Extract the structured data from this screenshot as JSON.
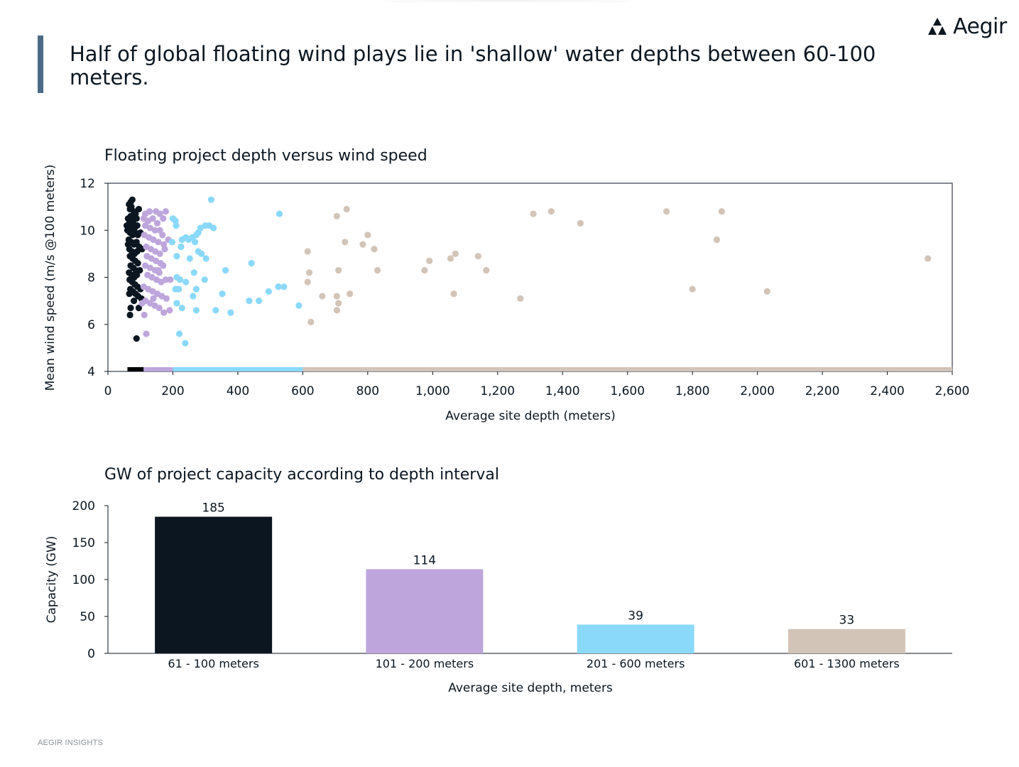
{
  "header": {
    "headline": "Half of global floating wind plays lie in 'shallow' water depths between 60-100 meters.",
    "logo_text": "Aegir"
  },
  "footer": {
    "text": "AEGIR INSIGHTS"
  },
  "colors": {
    "accent_bar": "#4a6a86",
    "d61_100": "#0b1620",
    "d101_200": "#bea6dc",
    "d201_600": "#8ad9fb",
    "d601_1300": "#d3c4b8"
  },
  "chart_data": [
    {
      "type": "scatter",
      "title": "Floating project depth versus wind speed",
      "xlabel": "Average site depth (meters)",
      "ylabel": "Mean wind speed  (m/s @100 meters)",
      "xlim": [
        0,
        2600
      ],
      "ylim": [
        4,
        12
      ],
      "xticks": [
        0,
        200,
        400,
        600,
        800,
        1000,
        1200,
        1400,
        1600,
        1800,
        2000,
        2200,
        2400,
        2600
      ],
      "xtick_labels": [
        "0",
        "200",
        "400",
        "600",
        "800",
        "1,000",
        "1,200",
        "1,400",
        "1,600",
        "1,800",
        "2,000",
        "2,200",
        "2,400",
        "2,600"
      ],
      "yticks": [
        4,
        6,
        8,
        10,
        12
      ],
      "ytick_labels": [
        "4",
        "6",
        "8",
        "10",
        "12"
      ],
      "grid": false,
      "depth_band_bar": [
        {
          "from": 60,
          "to": 110,
          "color": "#000000"
        },
        {
          "from": 110,
          "to": 200,
          "color": "#bea6dc"
        },
        {
          "from": 200,
          "to": 600,
          "color": "#8ad9fb"
        },
        {
          "from": 600,
          "to": 2600,
          "color": "#d3c4b8"
        }
      ],
      "series": [
        {
          "color": "#0b1620",
          "points": [
            [
              65,
              11.1
            ],
            [
              70,
              11.2
            ],
            [
              72,
              11.0
            ],
            [
              75,
              11.3
            ],
            [
              68,
              10.9
            ],
            [
              80,
              10.8
            ],
            [
              85,
              10.7
            ],
            [
              62,
              10.5
            ],
            [
              70,
              10.6
            ],
            [
              78,
              10.4
            ],
            [
              88,
              10.5
            ],
            [
              66,
              10.3
            ],
            [
              74,
              10.2
            ],
            [
              82,
              10.1
            ],
            [
              90,
              10.2
            ],
            [
              60,
              10.0
            ],
            [
              68,
              9.9
            ],
            [
              76,
              9.8
            ],
            [
              84,
              9.9
            ],
            [
              92,
              9.8
            ],
            [
              64,
              9.6
            ],
            [
              72,
              9.5
            ],
            [
              80,
              9.4
            ],
            [
              88,
              9.5
            ],
            [
              96,
              9.3
            ],
            [
              66,
              9.2
            ],
            [
              74,
              9.1
            ],
            [
              82,
              9.0
            ],
            [
              90,
              9.1
            ],
            [
              68,
              8.9
            ],
            [
              76,
              8.8
            ],
            [
              84,
              8.7
            ],
            [
              92,
              8.6
            ],
            [
              70,
              8.5
            ],
            [
              78,
              8.4
            ],
            [
              86,
              8.3
            ],
            [
              65,
              8.2
            ],
            [
              73,
              8.1
            ],
            [
              81,
              8.0
            ],
            [
              89,
              8.1
            ],
            [
              67,
              7.9
            ],
            [
              75,
              7.8
            ],
            [
              83,
              7.7
            ],
            [
              91,
              7.6
            ],
            [
              69,
              7.5
            ],
            [
              77,
              7.4
            ],
            [
              85,
              7.3
            ],
            [
              93,
              7.2
            ],
            [
              100,
              7.5
            ],
            [
              103,
              7.1
            ],
            [
              66,
              7.3
            ],
            [
              80,
              7.0
            ],
            [
              70,
              6.7
            ],
            [
              95,
              6.7
            ],
            [
              68,
              6.4
            ],
            [
              88,
              5.4
            ],
            [
              58,
              10.2
            ],
            [
              62,
              9.4
            ],
            [
              72,
              10.0
            ],
            [
              95,
              10.9
            ],
            [
              100,
              9.9
            ],
            [
              105,
              9.2
            ],
            [
              98,
              8.3
            ]
          ]
        },
        {
          "color": "#bea6dc",
          "points": [
            [
              115,
              10.7
            ],
            [
              128,
              10.8
            ],
            [
              148,
              10.8
            ],
            [
              160,
              10.7
            ],
            [
              178,
              10.8
            ],
            [
              110,
              10.5
            ],
            [
              124,
              10.4
            ],
            [
              138,
              10.5
            ],
            [
              152,
              10.3
            ],
            [
              170,
              10.5
            ],
            [
              115,
              10.2
            ],
            [
              130,
              10.1
            ],
            [
              145,
              10.0
            ],
            [
              160,
              10.0
            ],
            [
              112,
              9.8
            ],
            [
              126,
              9.7
            ],
            [
              140,
              9.6
            ],
            [
              155,
              9.5
            ],
            [
              172,
              9.4
            ],
            [
              186,
              9.6
            ],
            [
              118,
              9.3
            ],
            [
              132,
              9.2
            ],
            [
              146,
              9.1
            ],
            [
              160,
              9.0
            ],
            [
              175,
              9.2
            ],
            [
              120,
              8.9
            ],
            [
              134,
              8.8
            ],
            [
              148,
              8.7
            ],
            [
              162,
              8.6
            ],
            [
              115,
              8.5
            ],
            [
              130,
              8.4
            ],
            [
              145,
              8.3
            ],
            [
              158,
              8.2
            ],
            [
              170,
              8.5
            ],
            [
              122,
              8.1
            ],
            [
              136,
              8.0
            ],
            [
              150,
              7.9
            ],
            [
              164,
              7.8
            ],
            [
              178,
              7.9
            ],
            [
              192,
              7.9
            ],
            [
              110,
              7.6
            ],
            [
              124,
              7.5
            ],
            [
              138,
              7.4
            ],
            [
              152,
              7.3
            ],
            [
              166,
              7.2
            ],
            [
              180,
              7.1
            ],
            [
              116,
              7.0
            ],
            [
              130,
              6.9
            ],
            [
              144,
              6.8
            ],
            [
              158,
              6.7
            ],
            [
              172,
              6.5
            ],
            [
              190,
              6.6
            ],
            [
              112,
              6.4
            ],
            [
              118,
              5.6
            ],
            [
              105,
              6.9
            ],
            [
              140,
              7.1
            ],
            [
              155,
              8.3
            ],
            [
              168,
              9.8
            ]
          ]
        },
        {
          "color": "#8ad9fb",
          "points": [
            [
              318,
              11.3
            ],
            [
              528,
              10.7
            ],
            [
              200,
              10.5
            ],
            [
              208,
              10.4
            ],
            [
              210,
              10.2
            ],
            [
              285,
              10.1
            ],
            [
              300,
              10.2
            ],
            [
              312,
              10.2
            ],
            [
              325,
              10.1
            ],
            [
              240,
              9.7
            ],
            [
              228,
              9.6
            ],
            [
              260,
              9.7
            ],
            [
              272,
              9.8
            ],
            [
              278,
              9.9
            ],
            [
              248,
              9.6
            ],
            [
              198,
              9.5
            ],
            [
              268,
              9.5
            ],
            [
              225,
              9.3
            ],
            [
              278,
              9.1
            ],
            [
              288,
              9.0
            ],
            [
              212,
              8.9
            ],
            [
              252,
              8.8
            ],
            [
              302,
              8.8
            ],
            [
              442,
              8.6
            ],
            [
              362,
              8.3
            ],
            [
              265,
              8.2
            ],
            [
              212,
              8.0
            ],
            [
              222,
              7.9
            ],
            [
              298,
              7.9
            ],
            [
              240,
              7.8
            ],
            [
              208,
              7.5
            ],
            [
              218,
              7.5
            ],
            [
              272,
              7.5
            ],
            [
              525,
              7.6
            ],
            [
              542,
              7.6
            ],
            [
              495,
              7.4
            ],
            [
              352,
              7.3
            ],
            [
              262,
              7.2
            ],
            [
              435,
              7.0
            ],
            [
              465,
              7.0
            ],
            [
              212,
              6.9
            ],
            [
              228,
              6.7
            ],
            [
              272,
              6.6
            ],
            [
              332,
              6.6
            ],
            [
              378,
              6.5
            ],
            [
              588,
              6.8
            ],
            [
              220,
              5.6
            ],
            [
              238,
              5.2
            ]
          ]
        },
        {
          "color": "#d3c4b8",
          "points": [
            [
              735,
              10.9
            ],
            [
              705,
              10.6
            ],
            [
              1310,
              10.7
            ],
            [
              1365,
              10.8
            ],
            [
              1720,
              10.8
            ],
            [
              1890,
              10.8
            ],
            [
              1455,
              10.3
            ],
            [
              800,
              9.8
            ],
            [
              730,
              9.5
            ],
            [
              785,
              9.4
            ],
            [
              820,
              9.2
            ],
            [
              615,
              9.1
            ],
            [
              1070,
              9.0
            ],
            [
              1140,
              8.9
            ],
            [
              1055,
              8.8
            ],
            [
              990,
              8.7
            ],
            [
              2525,
              8.8
            ],
            [
              1875,
              9.6
            ],
            [
              620,
              8.2
            ],
            [
              710,
              8.3
            ],
            [
              830,
              8.3
            ],
            [
              975,
              8.3
            ],
            [
              1165,
              8.3
            ],
            [
              615,
              7.8
            ],
            [
              1800,
              7.5
            ],
            [
              2030,
              7.4
            ],
            [
              745,
              7.3
            ],
            [
              660,
              7.2
            ],
            [
              705,
              7.2
            ],
            [
              1065,
              7.3
            ],
            [
              1270,
              7.1
            ],
            [
              710,
              6.9
            ],
            [
              705,
              6.6
            ],
            [
              625,
              6.1
            ]
          ]
        }
      ]
    },
    {
      "type": "bar",
      "title": "GW of project capacity according to depth interval",
      "xlabel": "Average site depth, meters",
      "ylabel": "Capacity (GW)",
      "ylim": [
        0,
        200
      ],
      "yticks": [
        0,
        50,
        100,
        150,
        200
      ],
      "ytick_labels": [
        "0",
        "50",
        "100",
        "150",
        "200"
      ],
      "categories": [
        "61 - 100 meters",
        "101 - 200 meters",
        "201 - 600 meters",
        "601 - 1300 meters"
      ],
      "values": [
        185,
        114,
        39,
        33
      ],
      "value_labels": [
        "185",
        "114",
        "39",
        "33"
      ],
      "bar_colors": [
        "#0b1620",
        "#bea6dc",
        "#8ad9fb",
        "#d3c4b8"
      ],
      "grid": false
    }
  ]
}
